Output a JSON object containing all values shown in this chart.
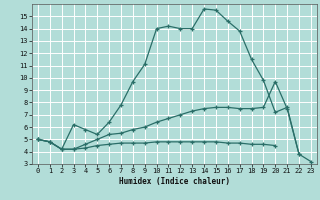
{
  "xlabel": "Humidex (Indice chaleur)",
  "bg_color": "#b2ddd8",
  "grid_color": "#ffffff",
  "line_color": "#2a6e68",
  "xlim": [
    -0.5,
    23.5
  ],
  "ylim": [
    3,
    16.0
  ],
  "xticks": [
    0,
    1,
    2,
    3,
    4,
    5,
    6,
    7,
    8,
    9,
    10,
    11,
    12,
    13,
    14,
    15,
    16,
    17,
    18,
    19,
    20,
    21,
    22,
    23
  ],
  "yticks": [
    3,
    4,
    5,
    6,
    7,
    8,
    9,
    10,
    11,
    12,
    13,
    14,
    15
  ],
  "line1_x": [
    0,
    1,
    2,
    3,
    4,
    5,
    6,
    7,
    8,
    9,
    10,
    11,
    12,
    13,
    14,
    15,
    16,
    17,
    18,
    19,
    20,
    21,
    22,
    23
  ],
  "line1_y": [
    5.0,
    4.8,
    4.2,
    6.2,
    5.8,
    5.4,
    6.4,
    7.8,
    9.7,
    11.1,
    14.0,
    14.2,
    14.0,
    14.0,
    15.6,
    15.5,
    14.6,
    13.8,
    11.5,
    9.8,
    7.2,
    7.6,
    3.8,
    3.2
  ],
  "line2_x": [
    0,
    1,
    2,
    3,
    4,
    5,
    6,
    7,
    8,
    9,
    10,
    11,
    12,
    13,
    14,
    15,
    16,
    17,
    18,
    19,
    20,
    21,
    22,
    23
  ],
  "line2_y": [
    5.0,
    4.8,
    4.2,
    4.2,
    4.6,
    5.0,
    5.4,
    5.5,
    5.8,
    6.0,
    6.4,
    6.7,
    7.0,
    7.3,
    7.5,
    7.6,
    7.6,
    7.5,
    7.5,
    7.6,
    9.7,
    7.5,
    3.8,
    null
  ],
  "line3_x": [
    0,
    1,
    2,
    3,
    4,
    5,
    6,
    7,
    8,
    9,
    10,
    11,
    12,
    13,
    14,
    15,
    16,
    17,
    18,
    19,
    20,
    21,
    22,
    23
  ],
  "line3_y": [
    5.0,
    4.8,
    4.2,
    4.2,
    4.3,
    4.5,
    4.6,
    4.7,
    4.7,
    4.7,
    4.8,
    4.8,
    4.8,
    4.8,
    4.8,
    4.8,
    4.7,
    4.7,
    4.6,
    4.6,
    4.5,
    null,
    null,
    null
  ]
}
